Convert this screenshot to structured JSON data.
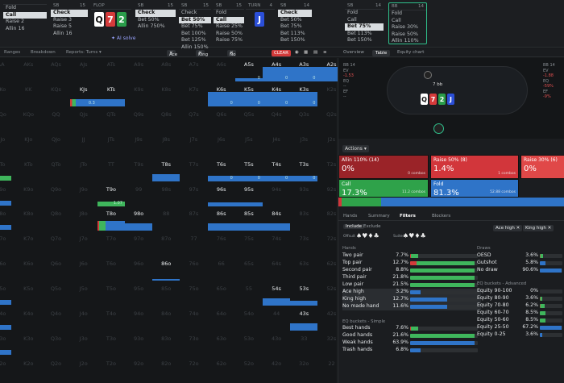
{
  "history": [
    {
      "pos": "",
      "stack": "",
      "items": [
        "Fold",
        "Call",
        "Raise 2",
        "Allin 16"
      ],
      "sel": 1
    },
    {
      "pos": "SB",
      "stack": "15",
      "items": [
        "Check",
        "Raise 3",
        "Raise 5",
        "Allin 16"
      ],
      "sel": 0
    },
    {
      "pos": "FLOP",
      "stack": "",
      "items": [],
      "sel": -1
    },
    {
      "pos": "SB",
      "stack": "15",
      "items": [
        "Check",
        "Bet 50%",
        "Allin 750%"
      ],
      "sel": 0
    },
    {
      "pos": "SB",
      "stack": "15",
      "items": [
        "Check",
        "Bet 50%",
        "Bet 75%",
        "Bet 100%",
        "Bet 125%",
        "Allin 150%"
      ],
      "sel": 1
    },
    {
      "pos": "SB",
      "stack": "15",
      "items": [
        "Fold",
        "Call",
        "Raise 25%",
        "Raise 50%",
        "Raise 75%"
      ],
      "sel": 1
    },
    {
      "pos": "TURN",
      "stack": "4",
      "items": [],
      "sel": -1
    },
    {
      "pos": "SB",
      "stack": "14",
      "items": [
        "Check",
        "Bet 50%",
        "Bet 75%",
        "Bet 113%",
        "Bet 150%"
      ],
      "sel": 0
    },
    {
      "pos": "SB",
      "stack": "14",
      "items": [
        "Fold",
        "Call",
        "Bet 75%",
        "Bet 113%",
        "Bet 150%"
      ],
      "sel": 2
    },
    {
      "pos": "BB",
      "stack": "14",
      "items": [
        "Fold",
        "Call",
        "Raise 30%",
        "Raise 50%",
        "Allin 110%"
      ],
      "sel": -1
    }
  ],
  "flop_cards": [
    "Q",
    "7",
    "2"
  ],
  "turn_card": "J",
  "ai_solve": "✦ AI solve",
  "tabs": {
    "ranges": "Ranges",
    "breakdown": "Breakdown",
    "reports": "Reports: Turns ▾"
  },
  "filters": [
    "Ace high",
    "King high",
    "No made hand"
  ],
  "clear": "CLEAR",
  "right_tabs": [
    "Overview",
    "Table",
    "Equity chart"
  ],
  "grid": [
    [
      "AA",
      "AKs",
      "AQs",
      "AJs",
      "ATs",
      "A9s",
      "A8s",
      "A7s",
      "A6s",
      "A5s",
      "A4s",
      "A3s",
      "A2s"
    ],
    [
      "AKo",
      "KK",
      "KQs",
      "KJs",
      "KTs",
      "K9s",
      "K8s",
      "K7s",
      "K6s",
      "K5s",
      "K4s",
      "K3s",
      "K2s"
    ],
    [
      "AQo",
      "KQo",
      "QQ",
      "QJs",
      "QTs",
      "Q9s",
      "Q8s",
      "Q7s",
      "Q6s",
      "Q5s",
      "Q4s",
      "Q3s",
      "Q2s"
    ],
    [
      "AJo",
      "KJo",
      "QJo",
      "JJ",
      "JTs",
      "J9s",
      "J8s",
      "J7s",
      "J6s",
      "J5s",
      "J4s",
      "J3s",
      "J2s"
    ],
    [
      "ATo",
      "KTo",
      "QTo",
      "JTo",
      "TT",
      "T9s",
      "T8s",
      "T7s",
      "T6s",
      "T5s",
      "T4s",
      "T3s",
      "T2s"
    ],
    [
      "A9o",
      "K9o",
      "Q9o",
      "J9o",
      "T9o",
      "99",
      "98s",
      "97s",
      "96s",
      "95s",
      "94s",
      "93s",
      "92s"
    ],
    [
      "A8o",
      "K8o",
      "Q8o",
      "J8o",
      "T8o",
      "98o",
      "88",
      "87s",
      "86s",
      "85s",
      "84s",
      "83s",
      "82s"
    ],
    [
      "A7o",
      "K7o",
      "Q7o",
      "J7o",
      "T7o",
      "97o",
      "87o",
      "77",
      "76s",
      "75s",
      "74s",
      "73s",
      "72s"
    ],
    [
      "A6o",
      "K6o",
      "Q6o",
      "J6o",
      "T6o",
      "96o",
      "86o",
      "76o",
      "66",
      "65s",
      "64s",
      "63s",
      "62s"
    ],
    [
      "A5o",
      "K5o",
      "Q5o",
      "J5o",
      "T5o",
      "95o",
      "85o",
      "75o",
      "65o",
      "55",
      "54s",
      "53s",
      "52s"
    ],
    [
      "A4o",
      "K4o",
      "Q4o",
      "J4o",
      "T4o",
      "94o",
      "84o",
      "74o",
      "64o",
      "54o",
      "44",
      "43s",
      "42s"
    ],
    [
      "A3o",
      "K3o",
      "Q3o",
      "J3o",
      "T3o",
      "93o",
      "83o",
      "73o",
      "63o",
      "53o",
      "43o",
      "33",
      "32s"
    ],
    [
      "A2o",
      "K2o",
      "Q2o",
      "J2o",
      "T2o",
      "92o",
      "82o",
      "72o",
      "62o",
      "52o",
      "42o",
      "32o",
      "22"
    ]
  ],
  "active_cells": {
    "0,9": {
      "bar": "blue",
      "h": 0.2,
      "num": "0"
    },
    "0,10": {
      "bar": "blue",
      "h": 1,
      "num": "0"
    },
    "0,11": {
      "bar": "blue",
      "h": 1,
      "num": "0"
    },
    "0,12": {
      "bar": "blue",
      "h": 1,
      "num": "0"
    },
    "1,3": {
      "bar": "mix",
      "h": 0.5,
      "num": "0.3"
    },
    "1,4": {
      "bar": "blue",
      "h": 0.5,
      "num": ""
    },
    "1,8": {
      "bar": "blue",
      "h": 1,
      "num": "0"
    },
    "1,9": {
      "bar": "blue",
      "h": 1,
      "num": "0"
    },
    "1,10": {
      "bar": "blue",
      "h": 1,
      "num": "0"
    },
    "1,11": {
      "bar": "blue",
      "h": 1,
      "num": "0"
    },
    "4,6": {
      "bar": "blue",
      "h": 0.5,
      "num": ""
    },
    "4,8": {
      "bar": "blue",
      "h": 0.4,
      "num": "0"
    },
    "4,9": {
      "bar": "blue",
      "h": 0.4,
      "num": "0"
    },
    "4,10": {
      "bar": "blue",
      "h": 0.4,
      "num": "0"
    },
    "4,11": {
      "bar": "blue",
      "h": 0.4,
      "num": "0"
    },
    "5,4": {
      "bar": "green",
      "h": 0.35,
      "num": "1.07"
    },
    "5,8": {
      "bar": "blue",
      "h": 0.3,
      "num": ""
    },
    "5,9": {
      "bar": "blue",
      "h": 0.3,
      "num": ""
    },
    "6,4": {
      "bar": "mixg",
      "h": 0.65,
      "num": ""
    },
    "6,5": {
      "bar": "blue",
      "h": 0.5,
      "num": ""
    },
    "6,8": {
      "bar": "blue",
      "h": 0.5,
      "num": ""
    },
    "6,9": {
      "bar": "blue",
      "h": 0.5,
      "num": ""
    },
    "6,10": {
      "bar": "blue",
      "h": 0.5,
      "num": ""
    },
    "8,6": {
      "bar": "blue",
      "h": 0.1,
      "num": ""
    },
    "9,10": {
      "bar": "blue",
      "h": 0.5,
      "num": ""
    },
    "9,11": {
      "bar": "blue",
      "h": 0.35,
      "num": ""
    },
    "10,11": {
      "bar": "blue",
      "h": 0.5,
      "num": ""
    }
  },
  "left_edge_bars": [
    {
      "row": 4,
      "color": "green"
    },
    {
      "row": 5,
      "color": "blue"
    },
    {
      "row": 6,
      "color": "blue"
    },
    {
      "row": 9,
      "color": "blue"
    },
    {
      "row": 10,
      "color": "blue"
    },
    {
      "row": 11,
      "color": "blue"
    }
  ],
  "table_stats": {
    "left": {
      "pos": "BB",
      "stack": "14",
      "ev": "-1.53",
      "eq": "--",
      "ef": "--"
    },
    "right": {
      "pos": "BB",
      "stack": "14",
      "ev": "-1.88",
      "eq": "-59%",
      "ef": "-9%"
    }
  },
  "table_pot": "7 bb",
  "actions_label": "Actions ▾",
  "action_tiles": [
    {
      "label": "Allin 110% (14)",
      "pct": "0%",
      "color": "#9a2328",
      "combos": "0 combos"
    },
    {
      "label": "Raise 50% (8)",
      "pct": "1.4%",
      "color": "#d2363b",
      "combos": "1 combos"
    },
    {
      "label": "Raise 30% (6)",
      "pct": "0%",
      "color": "#e04848",
      "combos": ""
    },
    {
      "label": "Call",
      "pct": "17.3%",
      "color": "#2fa24a",
      "combos": "11.2 combos"
    },
    {
      "label": "Fold",
      "pct": "81.3%",
      "color": "#2f74c8",
      "combos": "52.88 combos"
    }
  ],
  "panel_tabs": [
    "Hands",
    "Summary",
    "Filters",
    "Blockers"
  ],
  "panel_tab_active": "Filters",
  "filter_opts": {
    "include": "Include",
    "exclude": "Exclude",
    "offsuit": "Offsuit",
    "suited": "Suited"
  },
  "hands_title": "Hands",
  "hands": [
    {
      "name": "Two pair",
      "pct": "7.7%",
      "v": 0.12,
      "c": "mix"
    },
    {
      "name": "Top pair",
      "pct": "12.7%",
      "v": 0.95,
      "c": "mix"
    },
    {
      "name": "Second pair",
      "pct": "8.8%",
      "v": 0.95,
      "c": "green"
    },
    {
      "name": "Third pair",
      "pct": "21.8%",
      "v": 0.95,
      "c": "green"
    },
    {
      "name": "Low pair",
      "pct": "21.5%",
      "v": 0.95,
      "c": "green"
    },
    {
      "name": "Ace high",
      "pct": "3.2%",
      "v": 0.15,
      "c": "blue"
    },
    {
      "name": "King high",
      "pct": "12.7%",
      "v": 0.55,
      "c": "blue"
    },
    {
      "name": "No made hand",
      "pct": "11.6%",
      "v": 0.55,
      "c": "blue"
    }
  ],
  "eq_simple_title": "EQ buckets - Simple",
  "eq_simple": [
    {
      "name": "Best hands",
      "pct": "7.6%",
      "v": 0.12,
      "c": "mix"
    },
    {
      "name": "Good hands",
      "pct": "21.6%",
      "v": 0.95,
      "c": "green"
    },
    {
      "name": "Weak hands",
      "pct": "63.9%",
      "v": 0.95,
      "c": "blue"
    },
    {
      "name": "Trash hands",
      "pct": "6.8%",
      "v": 0.15,
      "c": "blue"
    }
  ],
  "draws_title": "Draws",
  "draws": [
    {
      "name": "OESD",
      "pct": "3.6%",
      "v": 0.15,
      "c": "mix"
    },
    {
      "name": "Gutshot",
      "pct": "5.8%",
      "v": 0.25,
      "c": "blue"
    },
    {
      "name": "No draw",
      "pct": "90.6%",
      "v": 0.95,
      "c": "blue"
    }
  ],
  "eq_adv_title": "EQ buckets - Advanced",
  "eq_adv": [
    {
      "name": "Equity 90-100",
      "pct": "0%",
      "v": 0,
      "c": "blue"
    },
    {
      "name": "Equity 80-90",
      "pct": "3.6%",
      "v": 0.12,
      "c": "mix"
    },
    {
      "name": "Equity 70-80",
      "pct": "6.2%",
      "v": 0.2,
      "c": "mix"
    },
    {
      "name": "Equity 60-70",
      "pct": "8.5%",
      "v": 0.25,
      "c": "green"
    },
    {
      "name": "Equity 50-60",
      "pct": "8.5%",
      "v": 0.25,
      "c": "green"
    },
    {
      "name": "Equity 25-50",
      "pct": "67.2%",
      "v": 0.95,
      "c": "blue"
    },
    {
      "name": "Equity 0-25",
      "pct": "3.6%",
      "v": 0.12,
      "c": "blue"
    }
  ],
  "colors": {
    "blue": "#2f74c8",
    "green": "#3fb65c",
    "red": "#d33b3b",
    "active": "#2fbf8b"
  }
}
